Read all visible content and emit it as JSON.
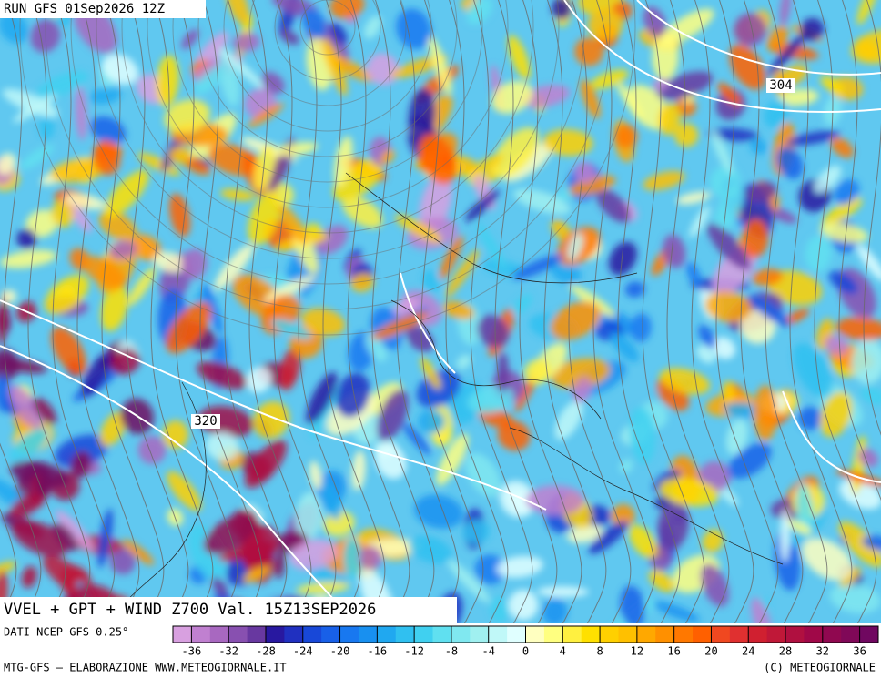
{
  "header": {
    "run": "RUN GFS 01Sep2026 12Z"
  },
  "map": {
    "contour_labels": [
      "304",
      "320"
    ]
  },
  "footer": {
    "title": "VVEL + GPT + WIND Z700 Val. 15Z13SEP2026",
    "source": "DATI NCEP GFS 0.25°",
    "credit_left": "MTG-GFS — ELABORAZIONE WWW.METEOGIORNALE.IT",
    "credit_right": "(C) METEOGIORNALE"
  },
  "colorbar": {
    "lim": [
      -38,
      38
    ],
    "ticks": [
      -36,
      -32,
      -28,
      -24,
      -20,
      -16,
      -12,
      -8,
      -4,
      0,
      4,
      8,
      12,
      16,
      20,
      24,
      28,
      32,
      36
    ],
    "colors": [
      "#d8a0e0",
      "#c080d0",
      "#a868c0",
      "#8850b0",
      "#6838a0",
      "#2818a0",
      "#2030c0",
      "#1848d8",
      "#1860e8",
      "#1878f0",
      "#1890f0",
      "#20a8f0",
      "#30c0f0",
      "#40d0f0",
      "#60e0f0",
      "#80e8f0",
      "#a0f0f0",
      "#c0f8f8",
      "#e0ffff",
      "#ffffc0",
      "#ffff80",
      "#fff040",
      "#ffe000",
      "#ffd000",
      "#ffc000",
      "#ffa800",
      "#ff9000",
      "#ff7800",
      "#ff6000",
      "#f04820",
      "#e03030",
      "#d02030",
      "#c01838",
      "#b01040",
      "#a00848",
      "#900850",
      "#800858",
      "#700860"
    ]
  }
}
